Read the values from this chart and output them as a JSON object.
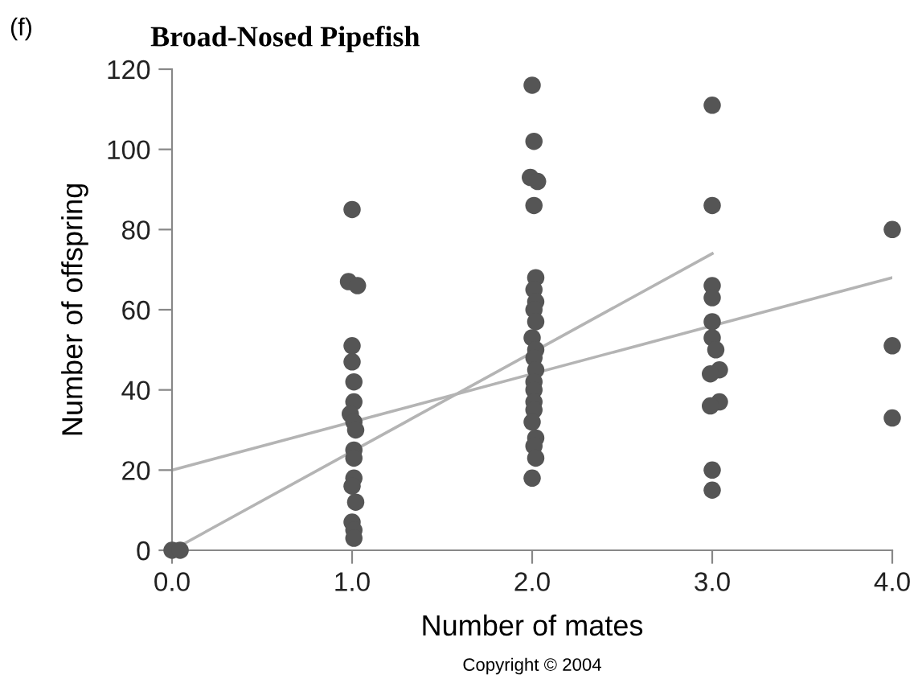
{
  "chart_data": {
    "type": "scatter",
    "title": "Broad-Nosed Pipefish",
    "xlabel": "Number of mates",
    "ylabel": "Number of offspring",
    "annotations": [
      "(f)",
      "Copyright © 2004"
    ],
    "xlim": [
      0,
      4
    ],
    "ylim": [
      0,
      120
    ],
    "xticks": [
      {
        "value": 0,
        "label": "0.0"
      },
      {
        "value": 1,
        "label": "1.0"
      },
      {
        "value": 2,
        "label": "2.0"
      },
      {
        "value": 3,
        "label": "3.0"
      },
      {
        "value": 4,
        "label": "4.0"
      }
    ],
    "yticks": [
      0,
      20,
      40,
      60,
      80,
      100,
      120
    ],
    "grid": false,
    "series": [
      {
        "marker": "circle",
        "color": "#555555",
        "x": [
          0,
          0.045,
          1,
          0.98,
          1.03,
          1,
          1,
          1.01,
          1.01,
          0.99,
          1.01,
          1.02,
          1.01,
          1.01,
          1.01,
          1,
          1.02,
          1,
          1.01,
          1.01,
          2,
          2.01,
          1.99,
          2.03,
          2.01,
          2.02,
          2.01,
          2.02,
          2.01,
          2.02,
          2,
          2.02,
          2.01,
          2.02,
          2.01,
          2.01,
          2.01,
          2.01,
          2,
          2.02,
          2.01,
          2.02,
          2,
          3,
          3,
          3,
          3,
          3,
          3,
          3.02,
          3.04,
          2.99,
          3.04,
          2.99,
          3,
          3,
          4,
          4,
          4
        ],
        "values": [
          0,
          0,
          85,
          67,
          66,
          51,
          47,
          42,
          37,
          34,
          32,
          30,
          25,
          23,
          18,
          16,
          12,
          7,
          5,
          3,
          116,
          102,
          93,
          92,
          86,
          68,
          65,
          62,
          60,
          57,
          53,
          50,
          48,
          45,
          42,
          40,
          37,
          35,
          32,
          28,
          26,
          23,
          18,
          111,
          86,
          66,
          63,
          57,
          53,
          50,
          45,
          44,
          37,
          36,
          20,
          15,
          80,
          51,
          33
        ]
      },
      {
        "type": "line",
        "color": "#b4b4b4",
        "x": [
          0,
          4
        ],
        "values": [
          20,
          68
        ]
      },
      {
        "type": "line",
        "color": "#b4b4b4",
        "x": [
          0,
          3
        ],
        "values": [
          0,
          74
        ]
      }
    ]
  }
}
